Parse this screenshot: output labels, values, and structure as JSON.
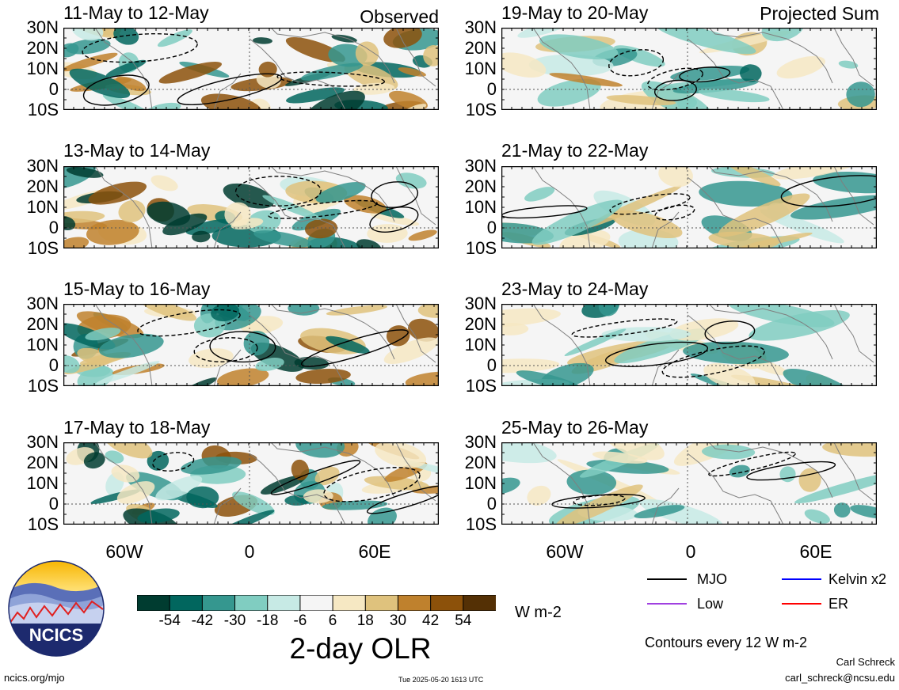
{
  "headers": {
    "left": "Observed",
    "right": "Projected Sum"
  },
  "panels": [
    {
      "title": "11-May to 12-May",
      "col": 0,
      "row": 0
    },
    {
      "title": "13-May to 14-May",
      "col": 0,
      "row": 1
    },
    {
      "title": "15-May to 16-May",
      "col": 0,
      "row": 2
    },
    {
      "title": "17-May to 18-May",
      "col": 0,
      "row": 3
    },
    {
      "title": "19-May to 20-May",
      "col": 1,
      "row": 0
    },
    {
      "title": "21-May to 22-May",
      "col": 1,
      "row": 1
    },
    {
      "title": "23-May to 24-May",
      "col": 1,
      "row": 2
    },
    {
      "title": "25-May to 26-May",
      "col": 1,
      "row": 3
    }
  ],
  "lat_labels": [
    "30N",
    "20N",
    "10N",
    "0",
    "10S"
  ],
  "lon_labels": [
    "60W",
    "0",
    "60E"
  ],
  "colorbar": {
    "title": "2-day OLR",
    "units": "W m-2",
    "ticks": [
      "-54",
      "-42",
      "-30",
      "-18",
      "-6",
      "6",
      "18",
      "30",
      "42",
      "54"
    ],
    "colors": [
      "#003c30",
      "#01665e",
      "#35978f",
      "#80cdc1",
      "#c7eae5",
      "#f5f5f5",
      "#f6e8c3",
      "#dfc27d",
      "#bf812d",
      "#8c510a",
      "#543005"
    ]
  },
  "legend": {
    "items": [
      {
        "label": "MJO",
        "color": "#000000"
      },
      {
        "label": "Kelvin x2",
        "color": "#0000ff"
      },
      {
        "label": "Low",
        "color": "#a040e0"
      },
      {
        "label": "ER",
        "color": "#ff0000"
      }
    ],
    "note": "Contours every 12 W m-2"
  },
  "credits": {
    "author": "Carl Schreck",
    "email": "carl_schreck@ncsu.edu",
    "url": "ncics.org/mjo",
    "timestamp": "Tue 2025-05-20 1613 UTC",
    "logo_text": "NCICS"
  }
}
